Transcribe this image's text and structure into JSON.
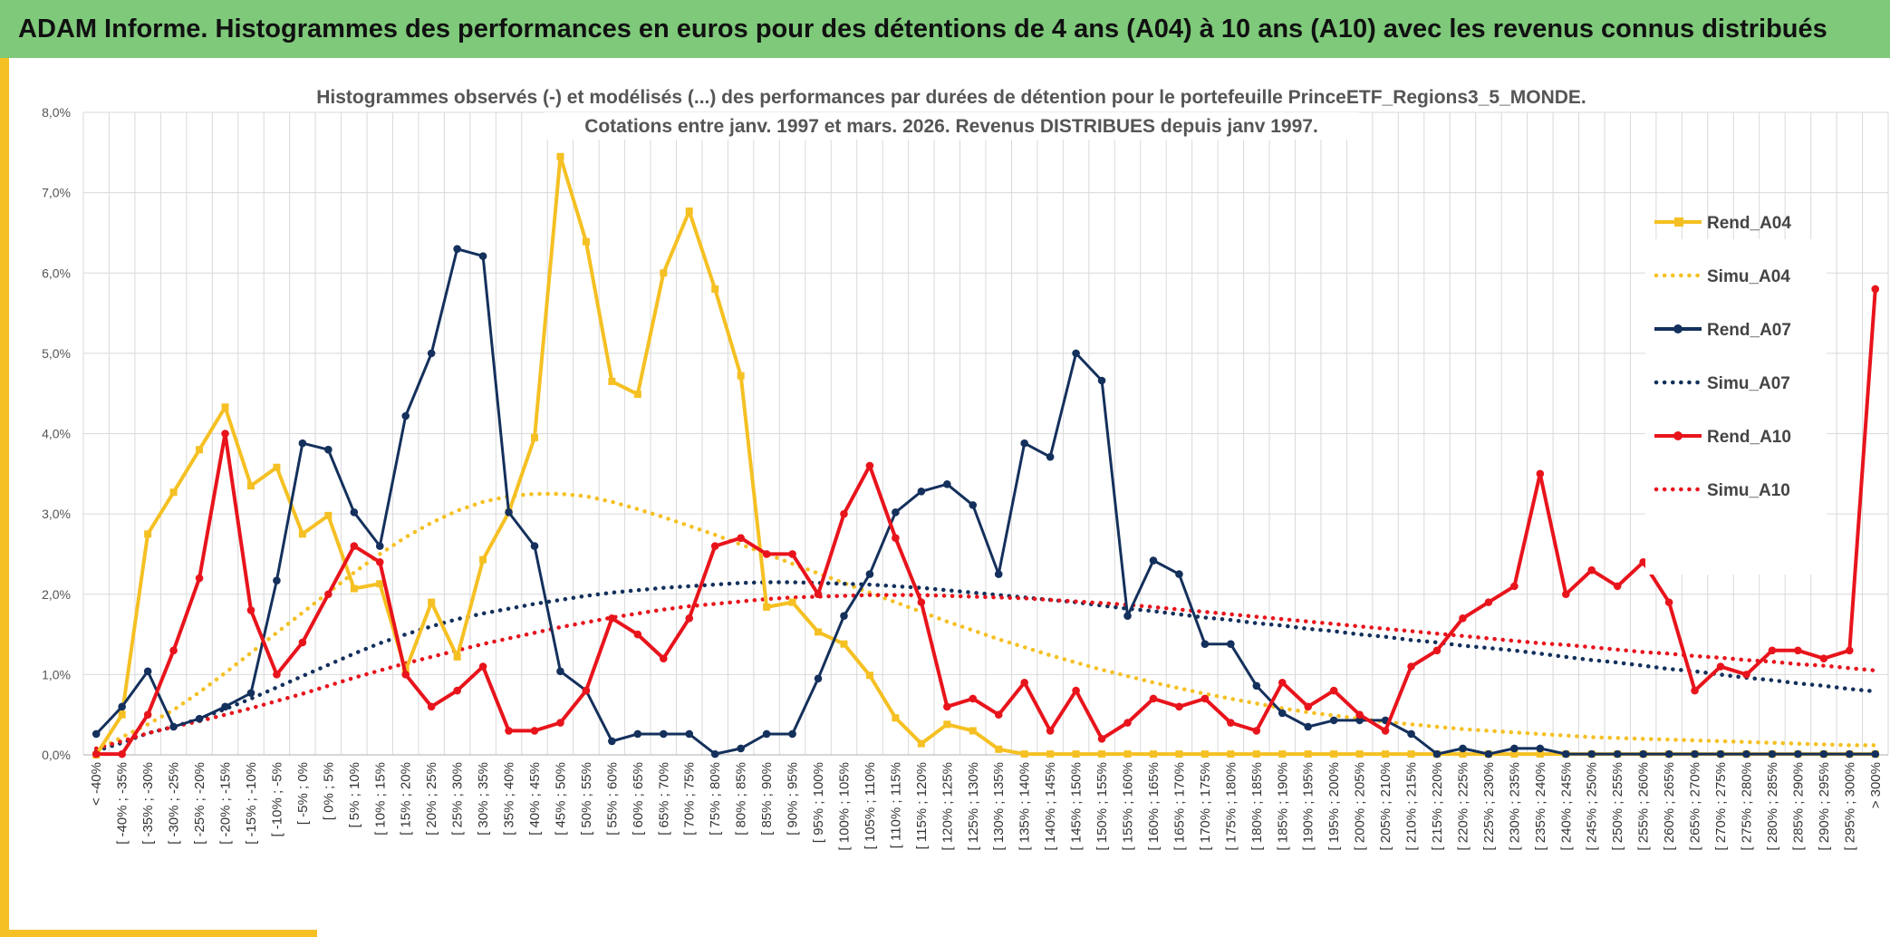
{
  "banner": {
    "title": "ADAM Informe. Histogrammes des performances en euros pour des détentions de 4 ans (A04) à 10 ans (A10) avec les revenus connus distribués"
  },
  "colors": {
    "banner": "#7ec97a",
    "accent": "#f5c023",
    "a04": "#f5c023",
    "a07": "#14305c",
    "a10": "#e8141c",
    "grid": "#d9d9d9"
  },
  "chart_data": {
    "type": "line",
    "title": "Histogrammes observés (-) et modélisés (...) des performances par durées de détention pour le portefeuille PrinceETF_Regions3_5_MONDE.",
    "subtitle": "Cotations entre janv. 1997 et mars. 2026. Revenus DISTRIBUES depuis janv 1997.",
    "xlabel": "",
    "ylabel": "",
    "ylim": [
      0,
      8
    ],
    "yticks": [
      "0,0%",
      "1,0%",
      "2,0%",
      "3,0%",
      "4,0%",
      "5,0%",
      "6,0%",
      "7,0%",
      "8,0%"
    ],
    "grid": true,
    "legend_position": "right",
    "categories": [
      "< -40%",
      "[ -40% ; -35%",
      "[ -35% ; -30%",
      "[ -30% ; -25%",
      "[ -25% ; -20%",
      "[ -20% ; -15%",
      "[ -15% ; -10%",
      "[ -10% ; -5%",
      "[ -5% ; 0%",
      "[ 0% ; 5%",
      "[ 5% ; 10%",
      "[ 10% ; 15%",
      "[ 15% ; 20%",
      "[ 20% ; 25%",
      "[ 25% ; 30%",
      "[ 30% ; 35%",
      "[ 35% ; 40%",
      "[ 40% ; 45%",
      "[ 45% ; 50%",
      "[ 50% ; 55%",
      "[ 55% ; 60%",
      "[ 60% ; 65%",
      "[ 65% ; 70%",
      "[ 70% ; 75%",
      "[ 75% ; 80%",
      "[ 80% ; 85%",
      "[ 85% ; 90%",
      "[ 90% ; 95%",
      "[ 95% ; 100%",
      "[ 100% ; 105%",
      "[ 105% ; 110%",
      "[ 110% ; 115%",
      "[ 115% ; 120%",
      "[ 120% ; 125%",
      "[ 125% ; 130%",
      "[ 130% ; 135%",
      "[ 135% ; 140%",
      "[ 140% ; 145%",
      "[ 145% ; 150%",
      "[ 150% ; 155%",
      "[ 155% ; 160%",
      "[ 160% ; 165%",
      "[ 165% ; 170%",
      "[ 170% ; 175%",
      "[ 175% ; 180%",
      "[ 180% ; 185%",
      "[ 185% ; 190%",
      "[ 190% ; 195%",
      "[ 195% ; 200%",
      "[ 200% ; 205%",
      "[ 205% ; 210%",
      "[ 210% ; 215%",
      "[ 215% ; 220%",
      "[ 220% ; 225%",
      "[ 225% ; 230%",
      "[ 230% ; 235%",
      "[ 235% ; 240%",
      "[ 240% ; 245%",
      "[ 245% ; 250%",
      "[ 250% ; 255%",
      "[ 255% ; 260%",
      "[ 260% ; 265%",
      "[ 265% ; 270%",
      "[ 270% ; 275%",
      "[ 275% ; 280%",
      "[ 280% ; 285%",
      "[ 285% ; 290%",
      "[ 290% ; 295%",
      "[ 295% ; 300%",
      "> 300%"
    ],
    "series": [
      {
        "name": "Rend_A04",
        "style": "solid",
        "marker": "square",
        "color": "#f5c023",
        "values": [
          0.0,
          0.5,
          2.75,
          3.27,
          3.8,
          4.33,
          3.35,
          3.58,
          2.75,
          2.98,
          2.07,
          2.13,
          1.05,
          1.9,
          1.22,
          2.43,
          3.02,
          3.95,
          7.45,
          6.39,
          4.65,
          4.49,
          6.0,
          6.77,
          5.8,
          4.72,
          1.84,
          1.9,
          1.53,
          1.38,
          0.99,
          0.46,
          0.14,
          0.38,
          0.3,
          0.07,
          0.01,
          0.01,
          0.01,
          0.01,
          0.01,
          0.01,
          0.01,
          0.01,
          0.01,
          0.01,
          0.01,
          0.01,
          0.01,
          0.01,
          0.01,
          0.01,
          0.01,
          0.01,
          0.01,
          0.01,
          0.01,
          0.01,
          0.01,
          0.01,
          0.01,
          0.01,
          0.01,
          0.01,
          0.01,
          0.01,
          0.01,
          0.01,
          0.01,
          0.01
        ]
      },
      {
        "name": "Simu_A04",
        "style": "dotted",
        "marker": "none",
        "color": "#f5c023",
        "values": [
          0.05,
          0.22,
          0.38,
          0.56,
          0.78,
          1.02,
          1.27,
          1.52,
          1.77,
          2.02,
          2.27,
          2.5,
          2.71,
          2.89,
          3.04,
          3.15,
          3.22,
          3.25,
          3.25,
          3.22,
          3.15,
          3.06,
          2.96,
          2.85,
          2.74,
          2.62,
          2.5,
          2.38,
          2.26,
          2.14,
          2.02,
          1.9,
          1.78,
          1.66,
          1.55,
          1.44,
          1.34,
          1.24,
          1.15,
          1.06,
          0.98,
          0.9,
          0.83,
          0.76,
          0.7,
          0.64,
          0.58,
          0.53,
          0.49,
          0.45,
          0.41,
          0.38,
          0.35,
          0.32,
          0.3,
          0.28,
          0.26,
          0.24,
          0.22,
          0.21,
          0.2,
          0.19,
          0.18,
          0.17,
          0.16,
          0.15,
          0.14,
          0.13,
          0.12,
          0.12
        ]
      },
      {
        "name": "Rend_A07",
        "style": "solid",
        "marker": "circle",
        "color": "#14305c",
        "values": [
          0.26,
          0.6,
          1.04,
          0.35,
          0.45,
          0.6,
          0.77,
          2.17,
          3.88,
          3.8,
          3.02,
          2.6,
          4.22,
          5.0,
          6.3,
          6.21,
          3.02,
          2.6,
          1.04,
          0.8,
          0.17,
          0.26,
          0.26,
          0.26,
          0.01,
          0.08,
          0.26,
          0.26,
          0.95,
          1.73,
          2.25,
          3.02,
          3.28,
          3.37,
          3.11,
          2.25,
          3.88,
          3.71,
          5.0,
          4.66,
          1.73,
          2.42,
          2.25,
          1.38,
          1.38,
          0.86,
          0.52,
          0.35,
          0.43,
          0.43,
          0.43,
          0.26,
          0.01,
          0.08,
          0.01,
          0.08,
          0.08,
          0.01,
          0.01,
          0.01,
          0.01,
          0.01,
          0.01,
          0.01,
          0.01,
          0.01,
          0.01,
          0.01,
          0.01,
          0.01
        ]
      },
      {
        "name": "Simu_A07",
        "style": "dotted",
        "marker": "none",
        "color": "#14305c",
        "values": [
          0.05,
          0.15,
          0.27,
          0.35,
          0.45,
          0.57,
          0.7,
          0.84,
          0.98,
          1.12,
          1.26,
          1.39,
          1.5,
          1.6,
          1.69,
          1.76,
          1.82,
          1.88,
          1.93,
          1.98,
          2.02,
          2.05,
          2.08,
          2.1,
          2.12,
          2.14,
          2.15,
          2.15,
          2.14,
          2.13,
          2.12,
          2.1,
          2.08,
          2.05,
          2.02,
          1.99,
          1.96,
          1.93,
          1.9,
          1.86,
          1.82,
          1.79,
          1.75,
          1.71,
          1.68,
          1.64,
          1.61,
          1.57,
          1.54,
          1.5,
          1.47,
          1.43,
          1.4,
          1.36,
          1.33,
          1.3,
          1.26,
          1.22,
          1.18,
          1.15,
          1.11,
          1.07,
          1.04,
          1.0,
          0.96,
          0.93,
          0.89,
          0.86,
          0.82,
          0.79
        ]
      },
      {
        "name": "Rend_A10",
        "style": "solid",
        "marker": "circle",
        "color": "#e8141c",
        "values": [
          0.01,
          0.01,
          0.5,
          1.3,
          2.2,
          4.0,
          1.8,
          1.0,
          1.4,
          2.0,
          2.6,
          2.4,
          1.0,
          0.6,
          0.8,
          1.1,
          0.3,
          0.3,
          0.4,
          0.8,
          1.7,
          1.5,
          1.2,
          1.7,
          2.6,
          2.7,
          2.5,
          2.5,
          2.0,
          3.0,
          3.6,
          2.7,
          1.9,
          0.6,
          0.7,
          0.5,
          0.9,
          0.3,
          0.8,
          0.2,
          0.4,
          0.7,
          0.6,
          0.7,
          0.4,
          0.3,
          0.9,
          0.6,
          0.8,
          0.5,
          0.3,
          1.1,
          1.3,
          1.7,
          1.9,
          2.1,
          3.5,
          2.0,
          2.3,
          2.1,
          2.4,
          1.9,
          0.8,
          1.1,
          1.0,
          1.3,
          1.3,
          1.2,
          1.3,
          5.8
        ]
      },
      {
        "name": "Simu_A10",
        "style": "dotted",
        "marker": "none",
        "color": "#e8141c",
        "values": [
          0.08,
          0.17,
          0.27,
          0.35,
          0.42,
          0.5,
          0.58,
          0.67,
          0.76,
          0.86,
          0.96,
          1.05,
          1.14,
          1.22,
          1.3,
          1.38,
          1.45,
          1.52,
          1.59,
          1.65,
          1.71,
          1.76,
          1.81,
          1.85,
          1.88,
          1.91,
          1.94,
          1.96,
          1.97,
          1.98,
          1.99,
          1.99,
          1.99,
          1.98,
          1.97,
          1.96,
          1.95,
          1.93,
          1.91,
          1.89,
          1.87,
          1.84,
          1.81,
          1.78,
          1.75,
          1.72,
          1.69,
          1.66,
          1.63,
          1.6,
          1.57,
          1.54,
          1.51,
          1.48,
          1.45,
          1.42,
          1.39,
          1.37,
          1.34,
          1.31,
          1.28,
          1.26,
          1.23,
          1.21,
          1.18,
          1.16,
          1.13,
          1.11,
          1.08,
          1.05
        ]
      }
    ]
  }
}
